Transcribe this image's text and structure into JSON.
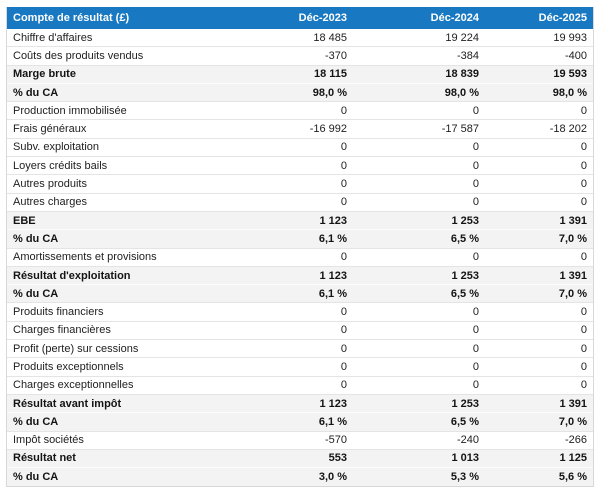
{
  "colors": {
    "header_bg": "#1878c2",
    "header_text": "#ffffff",
    "emphasis_bg": "#f3f3f3",
    "row_border": "#e4e4e4",
    "outer_border": "#d8d8d8",
    "text": "#212121"
  },
  "chart_data": {
    "type": "table",
    "title": "Compte de résultat (£)",
    "columns": [
      "Déc-2023",
      "Déc-2024",
      "Déc-2025"
    ],
    "rows": [
      {
        "label": "Chiffre d'affaires",
        "values": [
          "18 485",
          "19 224",
          "19 993"
        ],
        "emphasis": false
      },
      {
        "label": "Coûts des produits vendus",
        "values": [
          "-370",
          "-384",
          "-400"
        ],
        "emphasis": false
      },
      {
        "label": "Marge brute",
        "values": [
          "18 115",
          "18 839",
          "19 593"
        ],
        "emphasis": true
      },
      {
        "label": "% du CA",
        "values": [
          "98,0 %",
          "98,0 %",
          "98,0 %"
        ],
        "emphasis": true
      },
      {
        "label": "Production immobilisée",
        "values": [
          "0",
          "0",
          "0"
        ],
        "emphasis": false
      },
      {
        "label": "Frais généraux",
        "values": [
          "-16 992",
          "-17 587",
          "-18 202"
        ],
        "emphasis": false
      },
      {
        "label": "Subv. exploitation",
        "values": [
          "0",
          "0",
          "0"
        ],
        "emphasis": false
      },
      {
        "label": "Loyers crédits bails",
        "values": [
          "0",
          "0",
          "0"
        ],
        "emphasis": false
      },
      {
        "label": "Autres produits",
        "values": [
          "0",
          "0",
          "0"
        ],
        "emphasis": false
      },
      {
        "label": "Autres charges",
        "values": [
          "0",
          "0",
          "0"
        ],
        "emphasis": false
      },
      {
        "label": "EBE",
        "values": [
          "1 123",
          "1 253",
          "1 391"
        ],
        "emphasis": true
      },
      {
        "label": "% du CA",
        "values": [
          "6,1 %",
          "6,5 %",
          "7,0 %"
        ],
        "emphasis": true
      },
      {
        "label": "Amortissements et provisions",
        "values": [
          "0",
          "0",
          "0"
        ],
        "emphasis": false
      },
      {
        "label": "Résultat d'exploitation",
        "values": [
          "1 123",
          "1 253",
          "1 391"
        ],
        "emphasis": true
      },
      {
        "label": "% du CA",
        "values": [
          "6,1 %",
          "6,5 %",
          "7,0 %"
        ],
        "emphasis": true
      },
      {
        "label": "Produits financiers",
        "values": [
          "0",
          "0",
          "0"
        ],
        "emphasis": false
      },
      {
        "label": "Charges financières",
        "values": [
          "0",
          "0",
          "0"
        ],
        "emphasis": false
      },
      {
        "label": "Profit (perte) sur cessions",
        "values": [
          "0",
          "0",
          "0"
        ],
        "emphasis": false
      },
      {
        "label": "Produits exceptionnels",
        "values": [
          "0",
          "0",
          "0"
        ],
        "emphasis": false
      },
      {
        "label": "Charges exceptionnelles",
        "values": [
          "0",
          "0",
          "0"
        ],
        "emphasis": false
      },
      {
        "label": "Résultat avant impôt",
        "values": [
          "1 123",
          "1 253",
          "1 391"
        ],
        "emphasis": true
      },
      {
        "label": "% du CA",
        "values": [
          "6,1 %",
          "6,5 %",
          "7,0 %"
        ],
        "emphasis": true
      },
      {
        "label": "Impôt sociétés",
        "values": [
          "-570",
          "-240",
          "-266"
        ],
        "emphasis": false
      },
      {
        "label": "Résultat net",
        "values": [
          "553",
          "1 013",
          "1 125"
        ],
        "emphasis": true
      },
      {
        "label": "% du CA",
        "values": [
          "3,0 %",
          "5,3 %",
          "5,6 %"
        ],
        "emphasis": true
      }
    ]
  }
}
